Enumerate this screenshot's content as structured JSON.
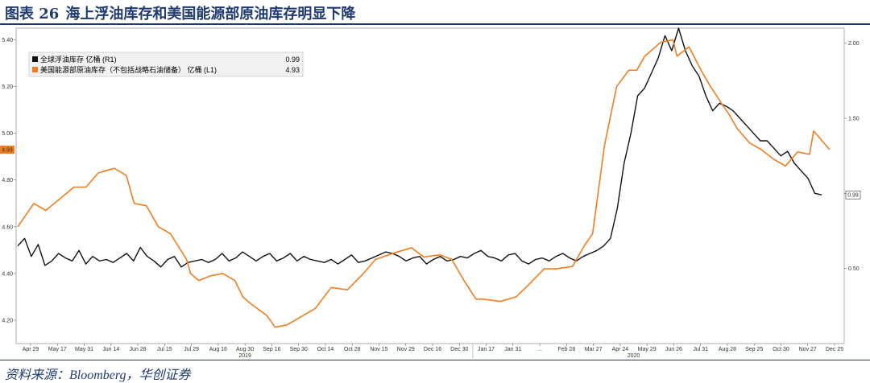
{
  "title": {
    "figure": "图表 26",
    "text": "海上浮油库存和美国能源部原油库存明显下降"
  },
  "source": "资料来源：Bloomberg，华创证券",
  "colors": {
    "black_series": "#111111",
    "orange_series": "#f07d1f",
    "title": "#1f3a6e"
  },
  "chart_data": {
    "type": "line",
    "left_axis": {
      "range": [
        4.1,
        5.45
      ],
      "ticks": [
        "4.20",
        "4.40",
        "4.60",
        "4.80",
        "5.00",
        "5.20",
        "5.40"
      ]
    },
    "right_axis": {
      "range": [
        0.0,
        2.1
      ],
      "ticks": [
        "0.50",
        "1.00",
        "1.50",
        "2.00"
      ]
    },
    "x_tick_labels": [
      "Apr 29",
      "May 17",
      "May 31",
      "Jun 14",
      "Jun 28",
      "Jul 15",
      "Jul 29",
      "Aug 16",
      "Aug 30",
      "Sep 16",
      "Sep 30",
      "Oct 14",
      "Oct 28",
      "Nov 15",
      "Nov 29",
      "Dec 16",
      "Dec 30",
      "Jan 17",
      "Jan 31",
      "...",
      "Feb 28",
      "Mar 27",
      "Apr 24",
      "May 29",
      "Jun 26",
      "Jul 31",
      "Aug 28",
      "Sep 25",
      "Oct 30",
      "Nov 27",
      "Dec 25"
    ],
    "year_labels": [
      "2019",
      "2020"
    ],
    "series": [
      {
        "name": "全球浮油库存 亿桶 (R1)",
        "last": "0.99",
        "axis": "right",
        "values": [
          0.65,
          0.7,
          0.58,
          0.66,
          0.52,
          0.55,
          0.6,
          0.57,
          0.55,
          0.62,
          0.53,
          0.58,
          0.55,
          0.56,
          0.54,
          0.57,
          0.6,
          0.55,
          0.64,
          0.58,
          0.55,
          0.51,
          0.56,
          0.58,
          0.51,
          0.54,
          0.55,
          0.56,
          0.54,
          0.56,
          0.6,
          0.55,
          0.57,
          0.61,
          0.58,
          0.55,
          0.58,
          0.6,
          0.55,
          0.57,
          0.6,
          0.55,
          0.58,
          0.56,
          0.55,
          0.54,
          0.56,
          0.53,
          0.56,
          0.59,
          0.54,
          0.55,
          0.57,
          0.59,
          0.61,
          0.6,
          0.58,
          0.55,
          0.57,
          0.58,
          0.53,
          0.56,
          0.58,
          0.55,
          0.56,
          0.58,
          0.57,
          0.6,
          0.62,
          0.58,
          0.57,
          0.55,
          0.59,
          0.6,
          0.55,
          0.53,
          0.56,
          0.57,
          0.55,
          0.58,
          0.6,
          0.57,
          0.55,
          0.58,
          0.6,
          0.62,
          0.65,
          0.7,
          0.9,
          1.2,
          1.4,
          1.65,
          1.7,
          1.8,
          1.9,
          2.05,
          1.95,
          2.1,
          1.95,
          1.85,
          1.78,
          1.65,
          1.55,
          1.6,
          1.58,
          1.55,
          1.5,
          1.45,
          1.4,
          1.35,
          1.35,
          1.3,
          1.25,
          1.28,
          1.2,
          1.15,
          1.1,
          1.0,
          0.99
        ],
        "values_shown": "approximate"
      },
      {
        "name": "美国能源部原油库存（不包括战略石油储备） 亿桶 (L1)",
        "last": "4.93",
        "axis": "left",
        "values_shown": "approximate"
      }
    ]
  }
}
